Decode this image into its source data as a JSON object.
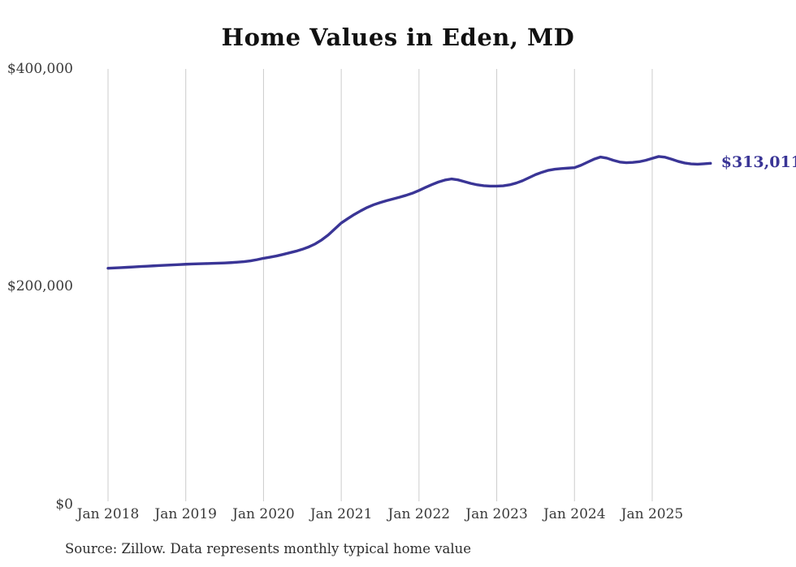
{
  "title": "Home Values in Eden, MD",
  "source_note": "Source: Zillow. Data represents monthly typical home value",
  "colors": {
    "line": "#3a3596",
    "grid": "#cccccc",
    "axis_text": "#3a3a3a",
    "title_text": "#111111",
    "source_text": "#2d2d2d"
  },
  "chart_data": {
    "type": "line",
    "title": "Home Values in Eden, MD",
    "series_name": "Typical home value (monthly)",
    "x_start": "Jan 2018",
    "x_end": "Oct 2025",
    "frequency": "monthly",
    "x_tick_labels": [
      "Jan 2018",
      "Jan 2019",
      "Jan 2020",
      "Jan 2021",
      "Jan 2022",
      "Jan 2023",
      "Jan 2024",
      "Jan 2025"
    ],
    "y_ticks": [
      {
        "label": "$400,000",
        "value": 400000
      },
      {
        "label": "$200,000",
        "value": 200000
      },
      {
        "label": "$0",
        "value": 0
      }
    ],
    "ylim": [
      0,
      400000
    ],
    "grid": "vertical-only",
    "legend": "none",
    "end_label": "$313,011",
    "end_value": 313011,
    "values": [
      216300,
      216600,
      216900,
      217200,
      217500,
      217900,
      218200,
      218500,
      218800,
      219100,
      219400,
      219700,
      220000,
      220200,
      220400,
      220600,
      220800,
      221000,
      221200,
      221500,
      221900,
      222400,
      223100,
      224200,
      225500,
      226500,
      227600,
      229000,
      230500,
      232000,
      233800,
      236000,
      238800,
      242500,
      247000,
      252500,
      258000,
      262000,
      265800,
      269200,
      272300,
      274800,
      276800,
      278600,
      280200,
      281800,
      283500,
      285500,
      288000,
      290800,
      293400,
      295800,
      297600,
      298600,
      297800,
      296200,
      294500,
      293200,
      292400,
      292000,
      292000,
      292300,
      293200,
      294800,
      297000,
      299800,
      302600,
      304800,
      306600,
      307600,
      308200,
      308600,
      309000,
      311200,
      314000,
      316800,
      318800,
      317800,
      315800,
      314200,
      313600,
      313900,
      314500,
      315800,
      317600,
      319300,
      318600,
      316800,
      314800,
      313300,
      312500,
      312200,
      312600,
      313011
    ]
  }
}
